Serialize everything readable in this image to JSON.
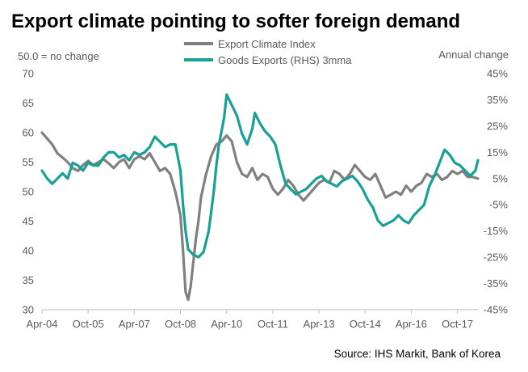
{
  "chart_data": {
    "type": "line",
    "title": "Export climate pointing to softer foreign demand",
    "left_axis_note": "50.0 = no change",
    "right_axis_note": "Annual change",
    "source": "Source: IHS Markit, Bank of Korea",
    "legend_placement": "top-center",
    "grid": false,
    "x_range": [
      "2004-04",
      "2018-06"
    ],
    "x_tick_labels": [
      "Apr-04",
      "Oct-05",
      "Apr-07",
      "Oct-08",
      "Apr-10",
      "Oct-11",
      "Apr-13",
      "Oct-14",
      "Apr-16",
      "Oct-17"
    ],
    "y_left": {
      "range": [
        30,
        70
      ],
      "ticks": [
        "30",
        "35",
        "40",
        "45",
        "50",
        "55",
        "60",
        "65",
        "70"
      ]
    },
    "y_right": {
      "range": [
        -45,
        45
      ],
      "unit": "%",
      "ticks": [
        "-45%",
        "-35%",
        "-25%",
        "-15%",
        "-5%",
        "5%",
        "15%",
        "25%",
        "35%",
        "45%"
      ]
    },
    "series": [
      {
        "name": "Export Climate Index",
        "axis": "left",
        "color": "#808080",
        "points": [
          [
            "2004-04",
            60.0
          ],
          [
            "2004-06",
            59.0
          ],
          [
            "2004-08",
            58.0
          ],
          [
            "2004-10",
            56.5
          ],
          [
            "2004-12",
            55.8
          ],
          [
            "2005-02",
            55.0
          ],
          [
            "2005-04",
            54.0
          ],
          [
            "2005-06",
            53.5
          ],
          [
            "2005-08",
            54.5
          ],
          [
            "2005-10",
            55.2
          ],
          [
            "2005-12",
            54.5
          ],
          [
            "2006-02",
            55.0
          ],
          [
            "2006-04",
            55.5
          ],
          [
            "2006-06",
            54.8
          ],
          [
            "2006-08",
            54.0
          ],
          [
            "2006-10",
            55.0
          ],
          [
            "2006-12",
            55.5
          ],
          [
            "2007-02",
            54.0
          ],
          [
            "2007-04",
            55.5
          ],
          [
            "2007-06",
            56.0
          ],
          [
            "2007-08",
            55.5
          ],
          [
            "2007-10",
            56.5
          ],
          [
            "2007-12",
            55.0
          ],
          [
            "2008-02",
            53.5
          ],
          [
            "2008-04",
            54.0
          ],
          [
            "2008-06",
            53.0
          ],
          [
            "2008-08",
            50.0
          ],
          [
            "2008-10",
            46.0
          ],
          [
            "2008-11",
            40.0
          ],
          [
            "2008-12",
            33.0
          ],
          [
            "2009-01",
            31.7
          ],
          [
            "2009-02",
            34.0
          ],
          [
            "2009-03",
            38.0
          ],
          [
            "2009-04",
            42.0
          ],
          [
            "2009-05",
            45.0
          ],
          [
            "2009-06",
            49.0
          ],
          [
            "2009-08",
            53.0
          ],
          [
            "2009-10",
            56.0
          ],
          [
            "2009-12",
            58.0
          ],
          [
            "2010-02",
            58.5
          ],
          [
            "2010-04",
            59.5
          ],
          [
            "2010-06",
            58.5
          ],
          [
            "2010-08",
            55.0
          ],
          [
            "2010-10",
            53.0
          ],
          [
            "2010-12",
            52.5
          ],
          [
            "2011-02",
            54.0
          ],
          [
            "2011-04",
            52.0
          ],
          [
            "2011-06",
            53.0
          ],
          [
            "2011-08",
            52.5
          ],
          [
            "2011-10",
            50.5
          ],
          [
            "2011-12",
            49.5
          ],
          [
            "2012-02",
            50.5
          ],
          [
            "2012-04",
            52.0
          ],
          [
            "2012-06",
            51.0
          ],
          [
            "2012-08",
            49.5
          ],
          [
            "2012-10",
            48.5
          ],
          [
            "2012-12",
            49.5
          ],
          [
            "2013-02",
            50.5
          ],
          [
            "2013-04",
            51.5
          ],
          [
            "2013-06",
            52.0
          ],
          [
            "2013-08",
            51.5
          ],
          [
            "2013-10",
            53.5
          ],
          [
            "2013-12",
            53.0
          ],
          [
            "2014-02",
            52.0
          ],
          [
            "2014-04",
            53.0
          ],
          [
            "2014-06",
            54.5
          ],
          [
            "2014-08",
            53.5
          ],
          [
            "2014-10",
            52.5
          ],
          [
            "2014-12",
            52.0
          ],
          [
            "2015-02",
            53.0
          ],
          [
            "2015-04",
            51.0
          ],
          [
            "2015-06",
            49.0
          ],
          [
            "2015-08",
            49.5
          ],
          [
            "2015-10",
            50.0
          ],
          [
            "2015-12",
            49.5
          ],
          [
            "2016-02",
            51.0
          ],
          [
            "2016-04",
            50.0
          ],
          [
            "2016-06",
            51.0
          ],
          [
            "2016-08",
            51.5
          ],
          [
            "2016-10",
            53.0
          ],
          [
            "2016-12",
            52.5
          ],
          [
            "2017-02",
            53.0
          ],
          [
            "2017-04",
            52.0
          ],
          [
            "2017-06",
            52.5
          ],
          [
            "2017-08",
            53.5
          ],
          [
            "2017-10",
            53.0
          ],
          [
            "2017-12",
            53.5
          ],
          [
            "2018-02",
            52.5
          ],
          [
            "2018-04",
            52.5
          ],
          [
            "2018-06",
            52.2
          ]
        ]
      },
      {
        "name": "Goods Exports (RHS) 3mma",
        "axis": "right",
        "color": "#17a095",
        "points": [
          [
            "2004-04",
            8
          ],
          [
            "2004-06",
            5
          ],
          [
            "2004-08",
            3
          ],
          [
            "2004-10",
            5
          ],
          [
            "2004-12",
            7
          ],
          [
            "2005-02",
            5
          ],
          [
            "2005-04",
            11
          ],
          [
            "2005-06",
            10
          ],
          [
            "2005-08",
            8
          ],
          [
            "2005-10",
            11
          ],
          [
            "2005-12",
            10
          ],
          [
            "2006-02",
            10
          ],
          [
            "2006-04",
            13
          ],
          [
            "2006-06",
            15
          ],
          [
            "2006-08",
            15
          ],
          [
            "2006-10",
            13
          ],
          [
            "2006-12",
            14
          ],
          [
            "2007-02",
            12
          ],
          [
            "2007-04",
            15
          ],
          [
            "2007-06",
            14
          ],
          [
            "2007-08",
            15
          ],
          [
            "2007-10",
            17
          ],
          [
            "2007-12",
            21
          ],
          [
            "2008-02",
            19
          ],
          [
            "2008-04",
            17
          ],
          [
            "2008-06",
            18
          ],
          [
            "2008-08",
            18
          ],
          [
            "2008-10",
            8
          ],
          [
            "2008-11",
            -5
          ],
          [
            "2008-12",
            -15
          ],
          [
            "2009-01",
            -22
          ],
          [
            "2009-03",
            -24
          ],
          [
            "2009-05",
            -25
          ],
          [
            "2009-07",
            -23
          ],
          [
            "2009-09",
            -15
          ],
          [
            "2009-11",
            0
          ],
          [
            "2009-12",
            10
          ],
          [
            "2010-01",
            18
          ],
          [
            "2010-03",
            28
          ],
          [
            "2010-04",
            37
          ],
          [
            "2010-06",
            33
          ],
          [
            "2010-08",
            29
          ],
          [
            "2010-10",
            22
          ],
          [
            "2010-12",
            18
          ],
          [
            "2011-02",
            24
          ],
          [
            "2011-03",
            30
          ],
          [
            "2011-05",
            26
          ],
          [
            "2011-07",
            23
          ],
          [
            "2011-09",
            21
          ],
          [
            "2011-11",
            18
          ],
          [
            "2012-01",
            10
          ],
          [
            "2012-03",
            3
          ],
          [
            "2012-05",
            1
          ],
          [
            "2012-07",
            -1
          ],
          [
            "2012-09",
            0
          ],
          [
            "2012-11",
            1
          ],
          [
            "2013-01",
            3
          ],
          [
            "2013-03",
            5
          ],
          [
            "2013-05",
            6
          ],
          [
            "2013-07",
            4
          ],
          [
            "2013-09",
            3
          ],
          [
            "2013-11",
            2
          ],
          [
            "2014-01",
            4
          ],
          [
            "2014-03",
            5
          ],
          [
            "2014-05",
            6
          ],
          [
            "2014-07",
            4
          ],
          [
            "2014-09",
            1
          ],
          [
            "2014-11",
            -3
          ],
          [
            "2015-01",
            -6
          ],
          [
            "2015-03",
            -11
          ],
          [
            "2015-05",
            -13
          ],
          [
            "2015-07",
            -12
          ],
          [
            "2015-09",
            -11
          ],
          [
            "2015-11",
            -9
          ],
          [
            "2016-01",
            -11
          ],
          [
            "2016-03",
            -12
          ],
          [
            "2016-05",
            -9
          ],
          [
            "2016-07",
            -7
          ],
          [
            "2016-09",
            -5
          ],
          [
            "2016-11",
            2
          ],
          [
            "2017-01",
            6
          ],
          [
            "2017-03",
            11
          ],
          [
            "2017-05",
            16
          ],
          [
            "2017-07",
            14
          ],
          [
            "2017-09",
            11
          ],
          [
            "2017-11",
            10
          ],
          [
            "2018-01",
            8
          ],
          [
            "2018-03",
            6
          ],
          [
            "2018-05",
            8
          ],
          [
            "2018-06",
            12
          ]
        ]
      }
    ]
  }
}
